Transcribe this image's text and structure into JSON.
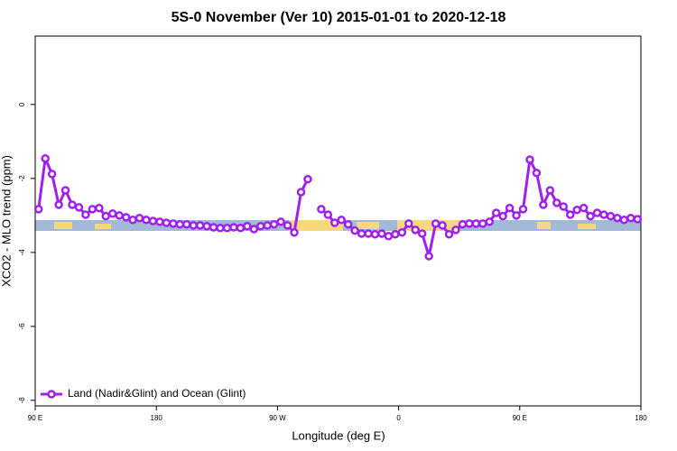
{
  "chart_data": {
    "type": "line",
    "title": "5S-0 November (Ver 10)   2015-01-01 to 2020-12-18",
    "xlabel": "Longitude (deg E)",
    "ylabel": "XCO2 - MLO trend (ppm)",
    "x": [
      92.5,
      97.5,
      102.5,
      107.5,
      112.5,
      117.5,
      122.5,
      127.5,
      132.5,
      137.5,
      142.5,
      147.5,
      152.5,
      157.5,
      162.5,
      167.5,
      172.5,
      177.5,
      182.5,
      187.5,
      192.5,
      197.5,
      202.5,
      207.5,
      212.5,
      217.5,
      222.5,
      227.5,
      232.5,
      237.5,
      242.5,
      247.5,
      252.5,
      257.5,
      262.5,
      267.5,
      272.5,
      277.5,
      282.5,
      287.5,
      292.5,
      297.5,
      302.5,
      307.5,
      312.5,
      317.5,
      322.5,
      327.5,
      332.5,
      337.5,
      342.5,
      347.5,
      352.5,
      357.5,
      362.5,
      367.5,
      372.5,
      377.5,
      382.5,
      387.5,
      392.5,
      397.5,
      402.5,
      407.5,
      412.5,
      417.5,
      422.5,
      427.5,
      432.5,
      437.5,
      442.5,
      447.5,
      452.5,
      457.5,
      462.5,
      467.5,
      472.5,
      477.5,
      482.5,
      487.5,
      492.5,
      497.5,
      502.5,
      507.5,
      512.5,
      517.5,
      522.5,
      527.5,
      532.5,
      537.5
    ],
    "series": [
      {
        "name": "Land (Nadir&Glint) and Ocean (Glint)",
        "color": "#a020f0",
        "values": [
          -2.83,
          -1.46,
          -1.88,
          -2.71,
          -2.32,
          -2.71,
          -2.78,
          -2.98,
          -2.83,
          -2.8,
          -3.02,
          -2.95,
          -3.0,
          -3.05,
          -3.12,
          -3.07,
          -3.12,
          -3.15,
          -3.17,
          -3.2,
          -3.22,
          -3.24,
          -3.24,
          -3.27,
          -3.27,
          -3.29,
          -3.32,
          -3.34,
          -3.34,
          -3.32,
          -3.34,
          -3.29,
          -3.37,
          -3.29,
          -3.27,
          -3.24,
          -3.17,
          -3.27,
          -3.46,
          -2.37,
          -2.02,
          null,
          -2.83,
          -2.98,
          -3.2,
          -3.12,
          -3.24,
          -3.41,
          -3.49,
          -3.49,
          -3.51,
          -3.49,
          -3.56,
          -3.51,
          -3.46,
          -3.22,
          -3.39,
          -3.49,
          -4.1,
          -3.22,
          -3.27,
          -3.51,
          -3.39,
          -3.24,
          -3.22,
          -3.22,
          -3.22,
          -3.17,
          -2.93,
          -3.02,
          -2.8,
          -3.0,
          -2.83,
          -1.49,
          -1.85,
          -2.71,
          -2.32,
          -2.66,
          -2.76,
          -2.98,
          -2.85,
          -2.8,
          -3.02,
          -2.93,
          -2.98,
          -3.02,
          -3.07,
          -3.12,
          -3.07,
          -3.1
        ]
      }
    ],
    "xlim": [
      90,
      540
    ],
    "xticks": [
      {
        "value": 90,
        "label": "90 E"
      },
      180,
      {
        "value": 270,
        "label": "90 W"
      },
      {
        "value": 360,
        "label": "0"
      },
      {
        "value": 450,
        "label": "90 E"
      },
      {
        "value": 540,
        "label": "180"
      }
    ],
    "ylim": [
      -8.15,
      1.85
    ],
    "yticks": [
      0,
      -2,
      -4,
      -6,
      -8
    ],
    "legend": "bottom-left"
  }
}
